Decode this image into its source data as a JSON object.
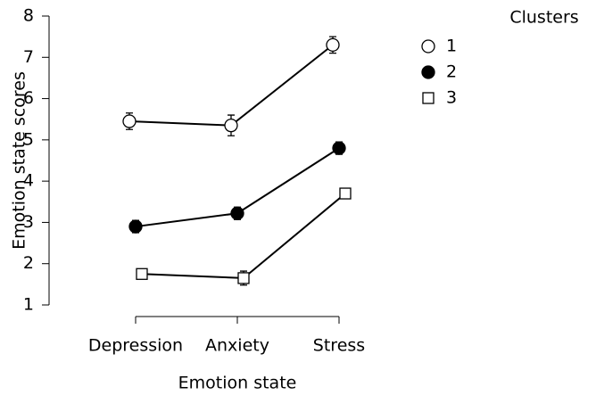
{
  "chart_data": {
    "type": "line",
    "x_label": "Emotion state",
    "y_label": "Emotion state scores",
    "categories": [
      "Depression",
      "Anxiety",
      "Stress"
    ],
    "legend_title": "Clusters",
    "legend": "right",
    "ylim": [
      1,
      8
    ],
    "yticks": [
      1,
      2,
      3,
      4,
      5,
      6,
      7,
      8
    ],
    "series": [
      {
        "name": "1",
        "color": "#ffffff",
        "marker": "circle",
        "values": [
          5.45,
          5.35,
          7.3
        ],
        "errors": [
          0.2,
          0.25,
          0.2
        ]
      },
      {
        "name": "2",
        "color": "#000000",
        "marker": "circle",
        "values": [
          2.9,
          3.22,
          4.8
        ],
        "errors": [
          0.15,
          0.15,
          0.15
        ]
      },
      {
        "name": "3",
        "color": "#ffffff",
        "marker": "square",
        "values": [
          1.75,
          1.65,
          3.7
        ],
        "errors": [
          0.12,
          0.17,
          0.1
        ]
      }
    ]
  }
}
